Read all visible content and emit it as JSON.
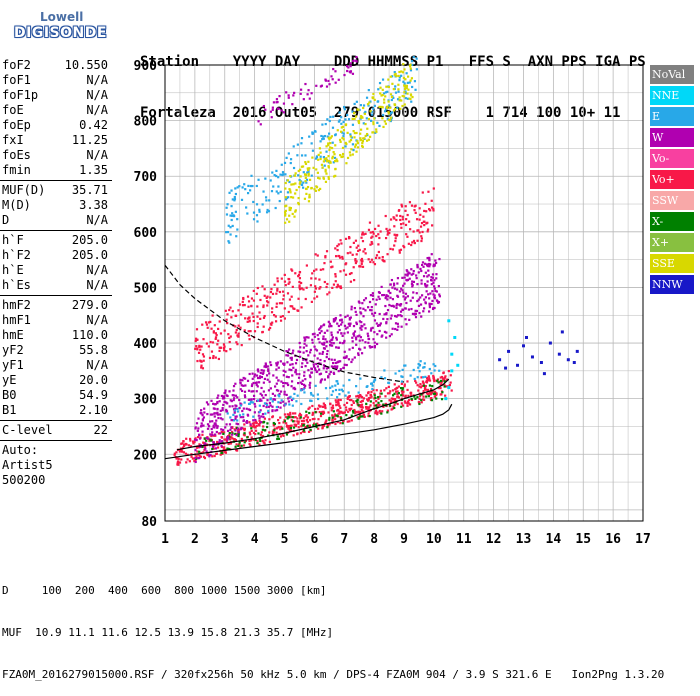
{
  "logo": {
    "line1": "Lowell",
    "line2": "DIGISONDE"
  },
  "header": {
    "line1": "Station    YYYY DAY    DDD HHMMSS P1   FFS S  AXN PPS IGA PS",
    "line2": "Fortaleza  2016 Out05  279 015000 RSF    1 714 100 10+ 11"
  },
  "params": [
    {
      "label": "foF2",
      "value": "10.550"
    },
    {
      "label": "foF1",
      "value": "N/A"
    },
    {
      "label": "foF1p",
      "value": "N/A"
    },
    {
      "label": "foE",
      "value": "N/A"
    },
    {
      "label": "foEp",
      "value": "0.42"
    },
    {
      "label": "fxI",
      "value": "11.25"
    },
    {
      "label": "foEs",
      "value": "N/A"
    },
    {
      "label": "fmin",
      "value": "1.35"
    },
    {
      "sep": true
    },
    {
      "label": "MUF(D)",
      "value": "35.71"
    },
    {
      "label": "M(D)",
      "value": "3.38"
    },
    {
      "label": "D",
      "value": "N/A"
    },
    {
      "sep": true
    },
    {
      "label": "h`F",
      "value": "205.0"
    },
    {
      "label": "h`F2",
      "value": "205.0"
    },
    {
      "label": "h`E",
      "value": "N/A"
    },
    {
      "label": "h`Es",
      "value": "N/A"
    },
    {
      "sep": true
    },
    {
      "label": "hmF2",
      "value": "279.0"
    },
    {
      "label": "hmF1",
      "value": "N/A"
    },
    {
      "label": "hmE",
      "value": "110.0"
    },
    {
      "label": "yF2",
      "value": "55.8"
    },
    {
      "label": "yF1",
      "value": "N/A"
    },
    {
      "label": "yE",
      "value": "20.0"
    },
    {
      "label": "B0",
      "value": "54.9"
    },
    {
      "label": "B1",
      "value": "2.10"
    },
    {
      "sep": true
    },
    {
      "label": "C-level",
      "value": "22"
    },
    {
      "sep": true
    },
    {
      "text": "Auto:"
    },
    {
      "text": "Artist5"
    },
    {
      "text": "500200"
    }
  ],
  "legend": [
    {
      "label": "NoVal",
      "color": "#808080"
    },
    {
      "label": "NNE",
      "color": "#00d8f8"
    },
    {
      "label": "E",
      "color": "#28a8e8"
    },
    {
      "label": "W",
      "color": "#b000b0"
    },
    {
      "label": "Vo-",
      "color": "#f840a0"
    },
    {
      "label": "Vo+",
      "color": "#f81848"
    },
    {
      "label": "SSW",
      "color": "#f8a8a8"
    },
    {
      "label": "X-",
      "color": "#008000"
    },
    {
      "label": "X+",
      "color": "#88c040"
    },
    {
      "label": "SSE",
      "color": "#d8d800"
    },
    {
      "label": "NNW",
      "color": "#1818c8"
    }
  ],
  "footer": {
    "line1": "D     100  200  400  600  800 1000 1500 3000 [km]",
    "line2": "MUF  10.9 11.1 11.6 12.5 13.9 15.8 21.3 35.7 [MHz]",
    "line3": "FZA0M_2016279015000.RSF / 320fx256h 50 kHz 5.0 km / DPS-4 FZA0M 904 / 3.9 S 321.6 E   Ion2Png 1.3.20"
  },
  "chart_data": {
    "type": "scatter",
    "xlim": [
      1,
      17
    ],
    "ylim": [
      80,
      900
    ],
    "x_ticks": [
      1,
      2,
      3,
      4,
      5,
      6,
      7,
      8,
      9,
      10,
      11,
      12,
      13,
      14,
      15,
      16,
      17
    ],
    "y_ticks": [
      80,
      200,
      300,
      400,
      500,
      600,
      700,
      800,
      900
    ],
    "grid": true,
    "series": [
      {
        "name": "NNW",
        "color": "#1818c8",
        "x": [
          12.2,
          12.5,
          12.8,
          13.0,
          13.3,
          13.6,
          13.9,
          14.2,
          14.5,
          14.8,
          12.4,
          13.1,
          13.7,
          14.3,
          14.7
        ],
        "y": [
          370,
          385,
          360,
          395,
          375,
          365,
          400,
          380,
          370,
          385,
          355,
          410,
          345,
          420,
          365
        ]
      },
      {
        "name": "NNE",
        "color": "#00d8f8",
        "x": [
          10.5,
          10.6,
          10.6,
          10.7,
          10.5,
          10.8,
          10.4
        ],
        "y": [
          320,
          350,
          380,
          410,
          440,
          360,
          300
        ]
      }
    ],
    "traces": [
      {
        "name": "F2 virtual height",
        "color": "#000000",
        "x": [
          1.4,
          2,
          3,
          4,
          5,
          6,
          7,
          7.5,
          8,
          8.5,
          9,
          9.5,
          10,
          10.3,
          10.5
        ],
        "y": [
          208,
          214,
          220,
          228,
          238,
          250,
          262,
          272,
          282,
          290,
          300,
          308,
          316,
          325,
          335
        ]
      },
      {
        "name": "F2 true height",
        "color": "#000000",
        "x": [
          1.0,
          2,
          3,
          4,
          5,
          6,
          7,
          8,
          9,
          9.5,
          10,
          10.3,
          10.5,
          10.6
        ],
        "y": [
          192,
          200,
          207,
          214,
          221,
          228,
          236,
          244,
          254,
          260,
          266,
          272,
          280,
          290
        ]
      },
      {
        "name": "dashed",
        "color": "#000000",
        "dash": true,
        "x": [
          1.0,
          1.5,
          2,
          3,
          4,
          5,
          6,
          7,
          8,
          9
        ],
        "y": [
          540,
          505,
          480,
          440,
          410,
          385,
          365,
          348,
          338,
          330
        ]
      }
    ],
    "bands": [
      {
        "color": "#f81848",
        "x0": 1.3,
        "x1": 10.6,
        "y0": 200,
        "y1": 330,
        "n": 700
      },
      {
        "color": "#008000",
        "x0": 2.0,
        "x1": 10.4,
        "y0": 210,
        "y1": 320,
        "n": 150
      },
      {
        "color": "#b000b0",
        "x0": 2.0,
        "x1": 10.2,
        "y0": 230,
        "y1": 520,
        "n": 900
      },
      {
        "color": "#28a8e8",
        "x0": 3.0,
        "x1": 10.2,
        "y0": 270,
        "y1": 360,
        "n": 120
      },
      {
        "color": "#f81848",
        "x0": 2.0,
        "x1": 10.0,
        "y0": 390,
        "y1": 640,
        "n": 450
      },
      {
        "color": "#28a8e8",
        "x0": 3.0,
        "x1": 9.5,
        "y0": 620,
        "y1": 880,
        "n": 260
      },
      {
        "color": "#d8d800",
        "x0": 5.0,
        "x1": 9.3,
        "y0": 650,
        "y1": 880,
        "n": 300
      },
      {
        "color": "#b000b0",
        "x0": 3.8,
        "x1": 7.5,
        "y0": 800,
        "y1": 900,
        "n": 60
      }
    ]
  }
}
